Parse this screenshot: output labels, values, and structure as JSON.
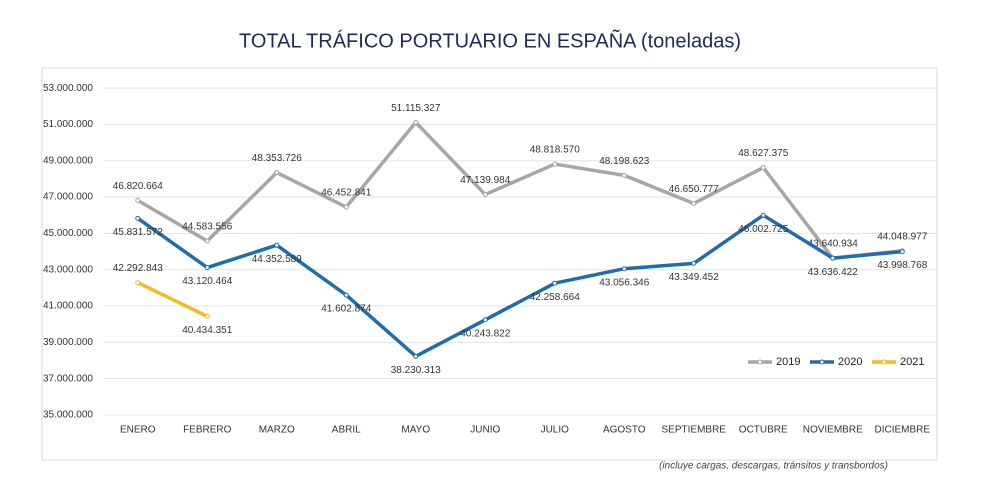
{
  "chart_data": {
    "type": "line",
    "title": "TOTAL TRÁFICO PORTUARIO EN ESPAÑA (toneladas)",
    "footnote": "(incluye cargas, descargas, tránsitos y transbordos)",
    "categories": [
      "ENERO",
      "FEBRERO",
      "MARZO",
      "ABRIL",
      "MAYO",
      "JUNIO",
      "JULIO",
      "AGOSTO",
      "SEPTIEMBRE",
      "OCTUBRE",
      "NOVIEMBRE",
      "DICIEMBRE"
    ],
    "series": [
      {
        "name": "2019",
        "color": "#a6a6a6",
        "values": [
          46820664,
          44583556,
          48353726,
          46452841,
          51115327,
          47139984,
          48818570,
          48198623,
          46650777,
          48627375,
          43640934,
          44048977
        ],
        "value_labels": [
          "46.820.664",
          "44.583.556",
          "48.353.726",
          "46.452.841",
          "51.115.327",
          "47.139.984",
          "48.818.570",
          "48.198.623",
          "46.650.777",
          "48.627.375",
          "43.640.934",
          "44.048.977"
        ]
      },
      {
        "name": "2020",
        "color": "#1f6cb0",
        "values": [
          45831572,
          43120464,
          44352589,
          41602874,
          38230313,
          40243822,
          42258664,
          43056346,
          43349452,
          46002725,
          43636422,
          43998768
        ],
        "value_labels": [
          "45.831.572",
          "43.120.464",
          "44.352.589",
          "41.602.874",
          "38.230.313",
          "40.243.822",
          "42.258.664",
          "43.056.346",
          "43.349.452",
          "46.002.725",
          "43.636.422",
          "43.998.768"
        ]
      },
      {
        "name": "2021",
        "color": "#f5b921",
        "values": [
          42292843,
          40434351,
          null,
          null,
          null,
          null,
          null,
          null,
          null,
          null,
          null,
          null
        ],
        "value_labels": [
          "42.292.843",
          "40.434.351",
          null,
          null,
          null,
          null,
          null,
          null,
          null,
          null,
          null,
          null
        ]
      }
    ],
    "ylim": [
      35000000,
      54000000
    ],
    "yticks": [
      {
        "value": 35000000,
        "label": "35.000.000"
      },
      {
        "value": 37000000,
        "label": "37.000.000"
      },
      {
        "value": 39000000,
        "label": "39.000.000"
      },
      {
        "value": 41000000,
        "label": "41.000.000"
      },
      {
        "value": 43000000,
        "label": "43.000.000"
      },
      {
        "value": 45000000,
        "label": "45.000.000"
      },
      {
        "value": 47000000,
        "label": "47.000.000"
      },
      {
        "value": 49000000,
        "label": "49.000.000"
      },
      {
        "value": 51000000,
        "label": "51.000.000"
      },
      {
        "value": 53000000,
        "label": "53.000.000"
      }
    ],
    "grid": true,
    "legend": "lower right"
  }
}
